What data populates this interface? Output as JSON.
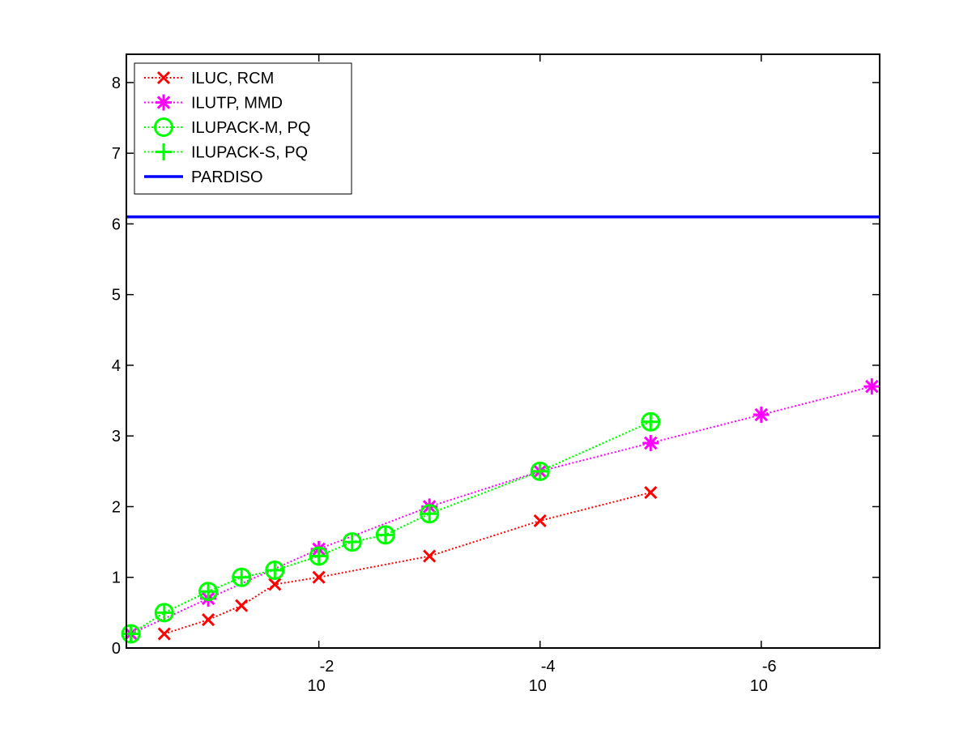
{
  "chart_data": {
    "type": "line",
    "title": "",
    "xlabel": "",
    "ylabel": "",
    "x_scale": "log-reversed",
    "xlim": [
      0.55,
      8.5e-08
    ],
    "ylim": [
      0,
      8.4
    ],
    "x_ticks": [
      {
        "value": 0.01,
        "base": "10",
        "exponent": "-2"
      },
      {
        "value": 0.0001,
        "base": "10",
        "exponent": "-4"
      },
      {
        "value": 1e-06,
        "base": "10",
        "exponent": "-6"
      }
    ],
    "y_ticks": [
      {
        "value": 0,
        "label": "0"
      },
      {
        "value": 1,
        "label": "1"
      },
      {
        "value": 2,
        "label": "2"
      },
      {
        "value": 3,
        "label": "3"
      },
      {
        "value": 4,
        "label": "4"
      },
      {
        "value": 5,
        "label": "5"
      },
      {
        "value": 6,
        "label": "6"
      },
      {
        "value": 7,
        "label": "7"
      },
      {
        "value": 8,
        "label": "8"
      }
    ],
    "grid": false,
    "legend_position": "top-left",
    "series": [
      {
        "name": "ILUC, RCM",
        "color": "#ff0000",
        "marker": "x",
        "line_style": "dotted",
        "points": [
          {
            "x": 0.25,
            "y": 0.2
          },
          {
            "x": 0.1,
            "y": 0.4
          },
          {
            "x": 0.05,
            "y": 0.6
          },
          {
            "x": 0.025,
            "y": 0.9
          },
          {
            "x": 0.01,
            "y": 1.0
          },
          {
            "x": 0.001,
            "y": 1.3
          },
          {
            "x": 0.0001,
            "y": 1.8
          },
          {
            "x": 1e-05,
            "y": 2.2
          }
        ]
      },
      {
        "name": "ILUTP, MMD",
        "color": "#ff00ff",
        "marker": "asterisk",
        "line_style": "dotted",
        "points": [
          {
            "x": 0.5,
            "y": 0.2
          },
          {
            "x": 0.1,
            "y": 0.7
          },
          {
            "x": 0.01,
            "y": 1.4
          },
          {
            "x": 0.001,
            "y": 2.0
          },
          {
            "x": 0.0001,
            "y": 2.5
          },
          {
            "x": 1e-05,
            "y": 2.9
          },
          {
            "x": 1e-06,
            "y": 3.3
          },
          {
            "x": 1e-07,
            "y": 3.7
          }
        ]
      },
      {
        "name": "ILUPACK-M, PQ",
        "color": "#00ff00",
        "marker": "circle",
        "line_style": "dotted",
        "points": [
          {
            "x": 0.5,
            "y": 0.2
          },
          {
            "x": 0.25,
            "y": 0.5
          },
          {
            "x": 0.1,
            "y": 0.8
          },
          {
            "x": 0.05,
            "y": 1.0
          },
          {
            "x": 0.025,
            "y": 1.1
          },
          {
            "x": 0.01,
            "y": 1.3
          },
          {
            "x": 0.005,
            "y": 1.5
          },
          {
            "x": 0.0025,
            "y": 1.6
          },
          {
            "x": 0.001,
            "y": 1.9
          },
          {
            "x": 0.0001,
            "y": 2.5
          },
          {
            "x": 1e-05,
            "y": 3.2
          }
        ]
      },
      {
        "name": "ILUPACK-S, PQ",
        "color": "#00ff00",
        "marker": "plus",
        "line_style": "dotted",
        "points": [
          {
            "x": 0.5,
            "y": 0.2
          },
          {
            "x": 0.25,
            "y": 0.5
          },
          {
            "x": 0.1,
            "y": 0.8
          },
          {
            "x": 0.05,
            "y": 1.0
          },
          {
            "x": 0.025,
            "y": 1.1
          },
          {
            "x": 0.01,
            "y": 1.3
          },
          {
            "x": 0.005,
            "y": 1.5
          },
          {
            "x": 0.0025,
            "y": 1.6
          },
          {
            "x": 0.001,
            "y": 1.9
          },
          {
            "x": 0.0001,
            "y": 2.5
          },
          {
            "x": 1e-05,
            "y": 3.2
          }
        ]
      },
      {
        "name": "PARDISO",
        "color": "#0000ff",
        "marker": "none",
        "line_style": "solid",
        "constant_y": 6.1
      }
    ]
  }
}
